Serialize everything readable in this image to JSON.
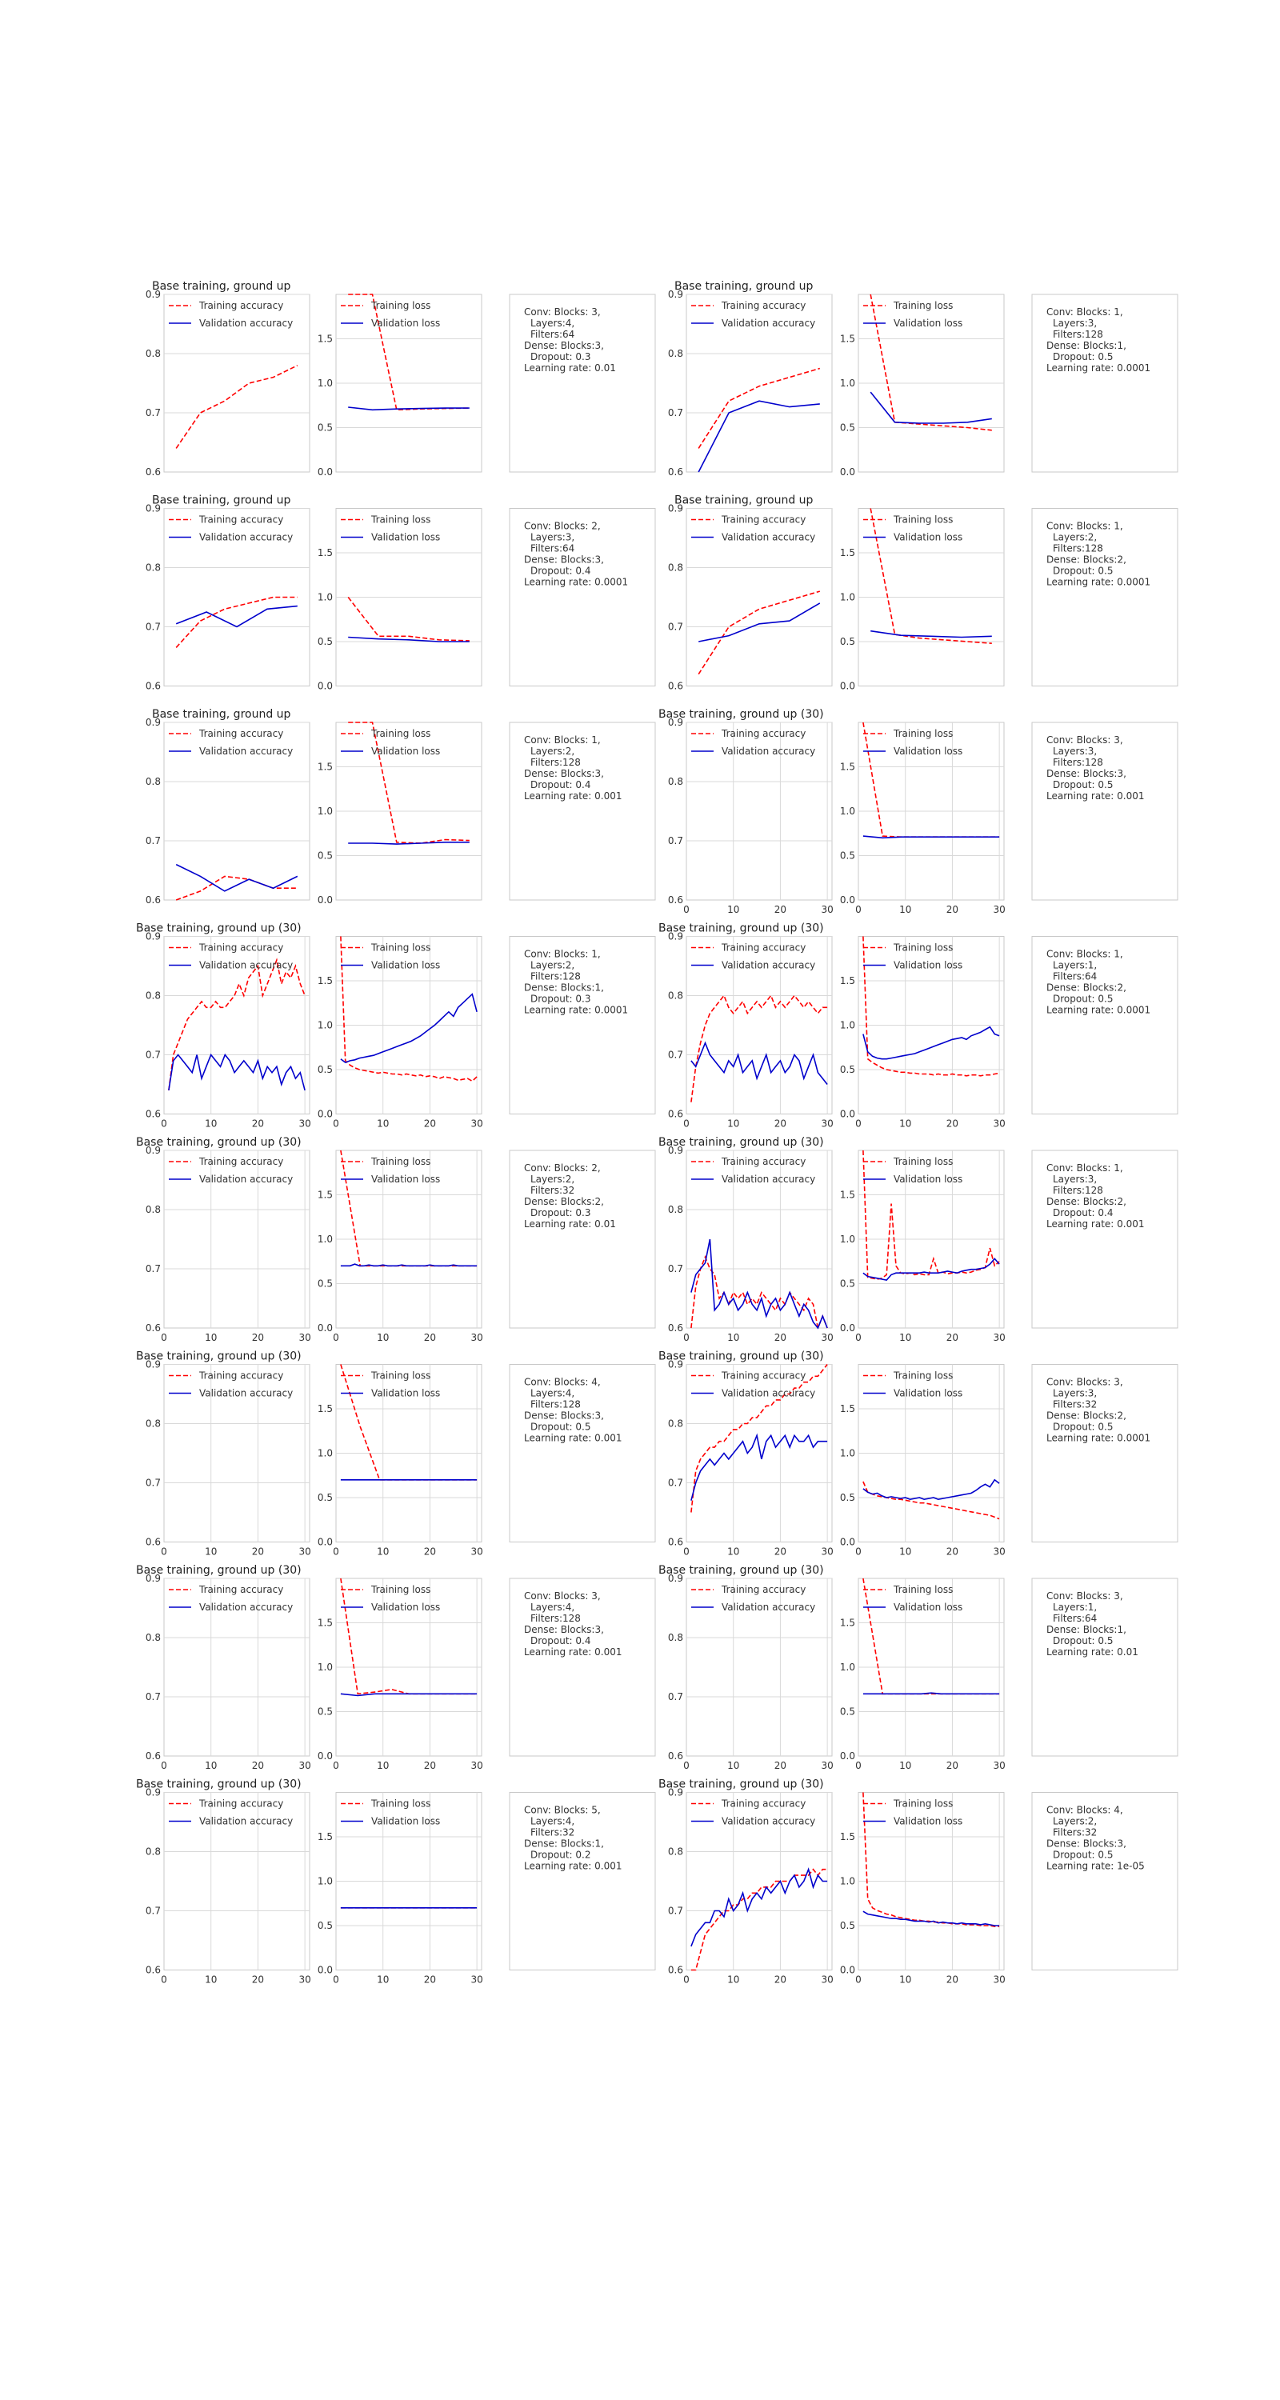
{
  "legend_labels": {
    "acc_train": "Training accuracy",
    "acc_val": "Validation accuracy",
    "loss_train": "Training loss",
    "loss_val": "Validation loss"
  },
  "colors": {
    "train": "#ff0000",
    "val": "#0000cc",
    "grid": "#d9d9d9",
    "frame": "#c8c8c8",
    "text": "#333333"
  },
  "chart_data": [
    {
      "title": "Base training, ground up",
      "x_ticks": [],
      "acc_train": [
        0.64,
        0.7,
        0.72,
        0.75,
        0.76,
        0.78
      ],
      "acc_val": [],
      "loss_train": [
        2,
        2,
        0.7,
        0.71,
        0.715,
        0.72
      ],
      "loss_val": [
        0.73,
        0.7,
        0.71,
        0.715,
        0.72,
        0.72
      ],
      "info": [
        "Conv: Blocks: 3,",
        "Layers:4,",
        "Filters:64",
        "Dense: Blocks:3,",
        "Dropout: 0.3",
        "Learning rate: 0.01"
      ]
    },
    {
      "title": "Base training, ground up",
      "x_ticks": [],
      "acc_train": [
        0.64,
        0.72,
        0.745,
        0.76,
        0.775
      ],
      "acc_val": [
        0.6,
        0.7,
        0.72,
        0.71,
        0.715
      ],
      "loss_train": [
        2,
        0.56,
        0.54,
        0.52,
        0.5,
        0.47
      ],
      "loss_val": [
        0.9,
        0.56,
        0.55,
        0.55,
        0.56,
        0.6
      ],
      "info": [
        "Conv: Blocks: 1,",
        "Layers:3,",
        "Filters:128",
        "Dense: Blocks:1,",
        "Dropout: 0.5",
        "Learning rate: 0.0001"
      ]
    },
    {
      "title": "Base training, ground up",
      "x_ticks": [],
      "acc_train": [
        0.665,
        0.71,
        0.73,
        0.74,
        0.75,
        0.75
      ],
      "acc_val": [
        0.705,
        0.725,
        0.7,
        0.73,
        0.735
      ],
      "loss_train": [
        1,
        0.56,
        0.56,
        0.52,
        0.51
      ],
      "loss_val": [
        0.55,
        0.53,
        0.52,
        0.5,
        0.5
      ],
      "info": [
        "Conv: Blocks: 2,",
        "Layers:3,",
        "Filters:64",
        "Dense: Blocks:3,",
        "Dropout: 0.4",
        "Learning rate: 0.0001"
      ]
    },
    {
      "title": "Base training, ground up",
      "x_ticks": [],
      "acc_train": [
        0.62,
        0.7,
        0.73,
        0.745,
        0.76
      ],
      "acc_val": [
        0.675,
        0.685,
        0.705,
        0.71,
        0.74
      ],
      "loss_train": [
        2,
        0.58,
        0.54,
        0.52,
        0.5,
        0.48
      ],
      "loss_val": [
        0.62,
        0.57,
        0.56,
        0.55,
        0.56
      ],
      "info": [
        "Conv: Blocks: 1,",
        "Layers:2,",
        "Filters:128",
        "Dense: Blocks:2,",
        "Dropout: 0.5",
        "Learning rate: 0.0001"
      ]
    },
    {
      "title": "Base training, ground up",
      "x_ticks": [],
      "acc_train": [
        0.6,
        0.615,
        0.64,
        0.635,
        0.62,
        0.62
      ],
      "acc_val": [
        0.66,
        0.64,
        0.615,
        0.635,
        0.62,
        0.64
      ],
      "loss_train": [
        2,
        2,
        0.65,
        0.64,
        0.68,
        0.67
      ],
      "loss_val": [
        0.64,
        0.64,
        0.63,
        0.64,
        0.65,
        0.65
      ],
      "info": [
        "Conv: Blocks: 1,",
        "Layers:2,",
        "Filters:128",
        "Dense: Blocks:3,",
        "Dropout: 0.4",
        "Learning rate: 0.001"
      ]
    },
    {
      "title": "Base training, ground up (30)",
      "x_ticks": [
        0,
        10,
        20,
        30
      ],
      "acc_train": [],
      "acc_val": [],
      "loss_train": [
        2,
        0.72,
        0.71,
        0.71,
        0.71,
        0.71,
        0.71,
        0.71
      ],
      "loss_val": [
        0.72,
        0.7,
        0.71,
        0.71,
        0.71,
        0.71,
        0.71,
        0.71
      ],
      "info": [
        "Conv: Blocks: 3,",
        "Layers:3,",
        "Filters:128",
        "Dense: Blocks:3,",
        "Dropout: 0.5",
        "Learning rate: 0.001"
      ]
    },
    {
      "title": "Base training, ground up (30)",
      "x_ticks": [
        0,
        10,
        20,
        30
      ],
      "acc_train": [
        0.64,
        0.7,
        0.72,
        0.74,
        0.76,
        0.77,
        0.78,
        0.79,
        0.78,
        0.78,
        0.79,
        0.78,
        0.78,
        0.79,
        0.8,
        0.82,
        0.8,
        0.83,
        0.84,
        0.85,
        0.8,
        0.82,
        0.84,
        0.86,
        0.82,
        0.84,
        0.83,
        0.85,
        0.82,
        0.8
      ],
      "acc_val": [
        0.64,
        0.69,
        0.7,
        0.69,
        0.68,
        0.67,
        0.7,
        0.66,
        0.68,
        0.7,
        0.69,
        0.68,
        0.7,
        0.69,
        0.67,
        0.68,
        0.69,
        0.68,
        0.67,
        0.69,
        0.66,
        0.68,
        0.67,
        0.68,
        0.65,
        0.67,
        0.68,
        0.66,
        0.67,
        0.64
      ],
      "loss_train": [
        2,
        0.6,
        0.55,
        0.52,
        0.5,
        0.49,
        0.48,
        0.47,
        0.46,
        0.47,
        0.46,
        0.45,
        0.45,
        0.44,
        0.45,
        0.44,
        0.43,
        0.44,
        0.42,
        0.43,
        0.42,
        0.4,
        0.42,
        0.41,
        0.4,
        0.38,
        0.39,
        0.4,
        0.37,
        0.42
      ],
      "loss_val": [
        0.62,
        0.58,
        0.6,
        0.61,
        0.63,
        0.64,
        0.65,
        0.66,
        0.68,
        0.7,
        0.72,
        0.74,
        0.76,
        0.78,
        0.8,
        0.82,
        0.85,
        0.88,
        0.92,
        0.96,
        1,
        1.05,
        1.1,
        1.15,
        1.1,
        1.2,
        1.25,
        1.3,
        1.35,
        1.15
      ],
      "info": [
        "Conv: Blocks: 1,",
        "Layers:2,",
        "Filters:128",
        "Dense: Blocks:1,",
        "Dropout: 0.3",
        "Learning rate: 0.0001"
      ]
    },
    {
      "title": "Base training, ground up (30)",
      "x_ticks": [
        0,
        10,
        20,
        30
      ],
      "acc_train": [
        0.62,
        0.68,
        0.72,
        0.75,
        0.77,
        0.78,
        0.79,
        0.8,
        0.78,
        0.77,
        0.78,
        0.79,
        0.77,
        0.78,
        0.79,
        0.78,
        0.79,
        0.8,
        0.78,
        0.79,
        0.78,
        0.79,
        0.8,
        0.79,
        0.78,
        0.79,
        0.78,
        0.77,
        0.78,
        0.78
      ],
      "acc_val": [
        0.69,
        0.68,
        0.7,
        0.72,
        0.7,
        0.69,
        0.68,
        0.67,
        0.69,
        0.68,
        0.7,
        0.67,
        0.68,
        0.69,
        0.66,
        0.68,
        0.7,
        0.67,
        0.68,
        0.69,
        0.67,
        0.68,
        0.7,
        0.69,
        0.66,
        0.68,
        0.7,
        0.67,
        0.66,
        0.65
      ],
      "loss_train": [
        2,
        0.62,
        0.58,
        0.55,
        0.52,
        0.5,
        0.49,
        0.48,
        0.47,
        0.47,
        0.46,
        0.46,
        0.45,
        0.45,
        0.45,
        0.44,
        0.45,
        0.44,
        0.44,
        0.45,
        0.44,
        0.44,
        0.43,
        0.44,
        0.44,
        0.43,
        0.44,
        0.44,
        0.45,
        0.46
      ],
      "loss_val": [
        0.9,
        0.7,
        0.65,
        0.63,
        0.62,
        0.62,
        0.63,
        0.64,
        0.65,
        0.66,
        0.67,
        0.68,
        0.7,
        0.72,
        0.74,
        0.76,
        0.78,
        0.8,
        0.82,
        0.84,
        0.85,
        0.86,
        0.84,
        0.88,
        0.9,
        0.92,
        0.95,
        0.98,
        0.9,
        0.88
      ],
      "info": [
        "Conv: Blocks: 1,",
        "Layers:1,",
        "Filters:64",
        "Dense: Blocks:2,",
        "Dropout: 0.5",
        "Learning rate: 0.0001"
      ]
    },
    {
      "title": "Base training, ground up (30)",
      "x_ticks": [
        0,
        10,
        20,
        30
      ],
      "acc_train": [],
      "acc_val": [],
      "loss_train": [
        2,
        0.7,
        0.7,
        0.7,
        0.7,
        0.7,
        0.7,
        0.7
      ],
      "loss_val": [
        0.7,
        0.7,
        0.7,
        0.72,
        0.7,
        0.7,
        0.71,
        0.7,
        0.7,
        0.71,
        0.7,
        0.7,
        0.7,
        0.71,
        0.7,
        0.7,
        0.7,
        0.7,
        0.7,
        0.71,
        0.7,
        0.7,
        0.7,
        0.7,
        0.71,
        0.7,
        0.7,
        0.7,
        0.7,
        0.7
      ],
      "info": [
        "Conv: Blocks: 2,",
        "Layers:2,",
        "Filters:32",
        "Dense: Blocks:2,",
        "Dropout: 0.3",
        "Learning rate: 0.01"
      ]
    },
    {
      "title": "Base training, ground up (30)",
      "x_ticks": [
        0,
        10,
        20,
        30
      ],
      "acc_train": [
        0.6,
        0.67,
        0.7,
        0.72,
        0.7,
        0.69,
        0.65,
        0.66,
        0.64,
        0.66,
        0.65,
        0.66,
        0.64,
        0.65,
        0.64,
        0.66,
        0.65,
        0.64,
        0.63,
        0.65,
        0.64,
        0.66,
        0.65,
        0.64,
        0.63,
        0.65,
        0.64,
        0.6,
        0.62,
        0.6
      ],
      "acc_val": [
        0.66,
        0.69,
        0.7,
        0.71,
        0.75,
        0.63,
        0.64,
        0.66,
        0.64,
        0.65,
        0.63,
        0.64,
        0.66,
        0.64,
        0.63,
        0.65,
        0.62,
        0.64,
        0.65,
        0.63,
        0.64,
        0.66,
        0.64,
        0.62,
        0.64,
        0.63,
        0.61,
        0.6,
        0.62,
        0.6
      ],
      "loss_train": [
        2,
        0.57,
        0.56,
        0.55,
        0.56,
        0.6,
        1.4,
        0.7,
        0.62,
        0.61,
        0.62,
        0.6,
        0.61,
        0.6,
        0.6,
        0.78,
        0.62,
        0.63,
        0.61,
        0.62,
        0.62,
        0.63,
        0.62,
        0.63,
        0.65,
        0.66,
        0.68,
        0.9,
        0.7,
        0.75
      ],
      "loss_val": [
        0.62,
        0.58,
        0.57,
        0.56,
        0.55,
        0.54,
        0.6,
        0.62,
        0.62,
        0.62,
        0.62,
        0.62,
        0.62,
        0.63,
        0.62,
        0.62,
        0.62,
        0.63,
        0.64,
        0.63,
        0.62,
        0.64,
        0.65,
        0.66,
        0.66,
        0.67,
        0.68,
        0.72,
        0.78,
        0.72
      ],
      "info": [
        "Conv: Blocks: 1,",
        "Layers:3,",
        "Filters:128",
        "Dense: Blocks:2,",
        "Dropout: 0.4",
        "Learning rate: 0.001"
      ]
    },
    {
      "title": "Base training, ground up (30)",
      "x_ticks": [
        0,
        10,
        20,
        30
      ],
      "acc_train": [],
      "acc_val": [],
      "loss_train": [
        2,
        1.3,
        0.7,
        0.7,
        0.7,
        0.7,
        0.7,
        0.7
      ],
      "loss_val": [
        0.7,
        0.7,
        0.7,
        0.7,
        0.7,
        0.7,
        0.7,
        0.7
      ],
      "info": [
        "Conv: Blocks: 4,",
        "Layers:4,",
        "Filters:128",
        "Dense: Blocks:3,",
        "Dropout: 0.5",
        "Learning rate: 0.001"
      ]
    },
    {
      "title": "Base training, ground up (30)",
      "x_ticks": [
        0,
        10,
        20,
        30
      ],
      "acc_train": [
        0.65,
        0.72,
        0.74,
        0.75,
        0.76,
        0.76,
        0.77,
        0.77,
        0.78,
        0.79,
        0.79,
        0.8,
        0.8,
        0.81,
        0.81,
        0.82,
        0.83,
        0.83,
        0.84,
        0.84,
        0.85,
        0.85,
        0.86,
        0.86,
        0.87,
        0.87,
        0.88,
        0.88,
        0.89,
        0.9
      ],
      "acc_val": [
        0.67,
        0.7,
        0.72,
        0.73,
        0.74,
        0.73,
        0.74,
        0.75,
        0.74,
        0.75,
        0.76,
        0.77,
        0.75,
        0.76,
        0.78,
        0.74,
        0.77,
        0.78,
        0.76,
        0.77,
        0.78,
        0.76,
        0.78,
        0.77,
        0.77,
        0.78,
        0.76,
        0.77,
        0.77,
        0.77
      ],
      "loss_train": [
        0.68,
        0.56,
        0.54,
        0.52,
        0.51,
        0.5,
        0.49,
        0.48,
        0.48,
        0.47,
        0.46,
        0.45,
        0.44,
        0.44,
        0.43,
        0.42,
        0.41,
        0.4,
        0.39,
        0.38,
        0.37,
        0.36,
        0.35,
        0.34,
        0.33,
        0.32,
        0.31,
        0.3,
        0.28,
        0.26
      ],
      "loss_val": [
        0.6,
        0.56,
        0.54,
        0.55,
        0.52,
        0.5,
        0.51,
        0.5,
        0.49,
        0.5,
        0.48,
        0.49,
        0.5,
        0.48,
        0.49,
        0.5,
        0.48,
        0.49,
        0.5,
        0.51,
        0.52,
        0.53,
        0.54,
        0.55,
        0.58,
        0.62,
        0.65,
        0.62,
        0.7,
        0.66
      ],
      "info": [
        "Conv: Blocks: 3,",
        "Layers:3,",
        "Filters:32",
        "Dense: Blocks:2,",
        "Dropout: 0.5",
        "Learning rate: 0.0001"
      ]
    },
    {
      "title": "Base training, ground up (30)",
      "x_ticks": [
        0,
        10,
        20,
        30
      ],
      "acc_train": [],
      "acc_val": [],
      "loss_train": [
        2,
        0.7,
        0.72,
        0.75,
        0.7,
        0.7,
        0.7,
        0.7,
        0.7
      ],
      "loss_val": [
        0.7,
        0.68,
        0.7,
        0.7,
        0.7,
        0.7,
        0.7,
        0.7,
        0.7
      ],
      "info": [
        "Conv: Blocks: 3,",
        "Layers:4,",
        "Filters:128",
        "Dense: Blocks:3,",
        "Dropout: 0.4",
        "Learning rate: 0.001"
      ]
    },
    {
      "title": "Base training, ground up (30)",
      "x_ticks": [
        0,
        10,
        20,
        30
      ],
      "acc_train": [],
      "acc_val": [],
      "loss_train": [
        2,
        0.7,
        0.7,
        0.7,
        0.7,
        0.7,
        0.7,
        0.7
      ],
      "loss_val": [
        0.7,
        0.7,
        0.7,
        0.7,
        0.7,
        0.7,
        0.7,
        0.71,
        0.7,
        0.7,
        0.7,
        0.7,
        0.7,
        0.7,
        0.7
      ],
      "info": [
        "Conv: Blocks: 3,",
        "Layers:1,",
        "Filters:64",
        "Dense: Blocks:1,",
        "Dropout: 0.5",
        "Learning rate: 0.01"
      ]
    },
    {
      "title": "Base training, ground up (30)",
      "x_ticks": [
        0,
        10,
        20,
        30
      ],
      "acc_train": [],
      "acc_val": [],
      "loss_train": [
        0.7,
        0.7,
        0.7,
        0.7,
        0.7,
        0.7,
        0.7
      ],
      "loss_val": [
        0.7,
        0.7,
        0.7,
        0.7,
        0.7,
        0.7,
        0.7
      ],
      "info": [
        "Conv: Blocks: 5,",
        "Layers:4,",
        "Filters:32",
        "Dense: Blocks:1,",
        "Dropout: 0.2",
        "Learning rate: 0.001"
      ]
    },
    {
      "title": "Base training, ground up (30)",
      "x_ticks": [
        0,
        10,
        20,
        30
      ],
      "acc_train": [
        0.55,
        0.6,
        0.63,
        0.66,
        0.67,
        0.68,
        0.69,
        0.7,
        0.7,
        0.71,
        0.71,
        0.72,
        0.72,
        0.73,
        0.73,
        0.74,
        0.74,
        0.74,
        0.75,
        0.75,
        0.75,
        0.75,
        0.76,
        0.76,
        0.76,
        0.76,
        0.77,
        0.76,
        0.77,
        0.77
      ],
      "acc_val": [
        0.64,
        0.66,
        0.67,
        0.68,
        0.68,
        0.7,
        0.7,
        0.69,
        0.72,
        0.7,
        0.71,
        0.73,
        0.7,
        0.72,
        0.73,
        0.72,
        0.74,
        0.73,
        0.74,
        0.75,
        0.73,
        0.75,
        0.76,
        0.74,
        0.75,
        0.77,
        0.74,
        0.76,
        0.75,
        0.75
      ],
      "loss_train": [
        2,
        0.8,
        0.7,
        0.67,
        0.65,
        0.63,
        0.62,
        0.6,
        0.59,
        0.58,
        0.57,
        0.56,
        0.56,
        0.55,
        0.55,
        0.54,
        0.54,
        0.53,
        0.53,
        0.52,
        0.52,
        0.52,
        0.51,
        0.51,
        0.51,
        0.5,
        0.5,
        0.5,
        0.49,
        0.49
      ],
      "loss_val": [
        0.66,
        0.63,
        0.62,
        0.61,
        0.6,
        0.59,
        0.58,
        0.58,
        0.57,
        0.57,
        0.56,
        0.55,
        0.55,
        0.55,
        0.54,
        0.55,
        0.53,
        0.54,
        0.53,
        0.53,
        0.52,
        0.53,
        0.52,
        0.52,
        0.52,
        0.51,
        0.52,
        0.51,
        0.5,
        0.5
      ],
      "info": [
        "Conv: Blocks: 4,",
        "Layers:2,",
        "Filters:32",
        "Dense: Blocks:3,",
        "Dropout: 0.5",
        "Learning rate: 1e-05"
      ]
    }
  ]
}
